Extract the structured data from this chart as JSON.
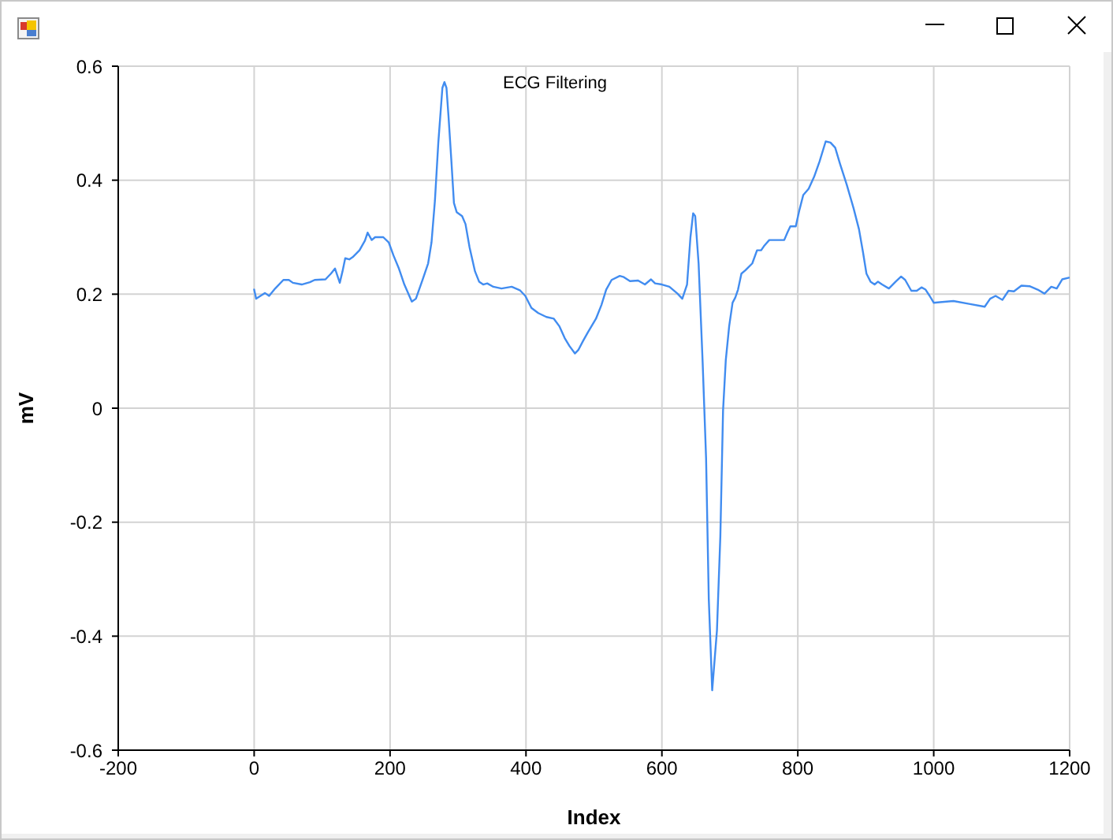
{
  "chart_data": {
    "type": "line",
    "title": "ECG Filtering",
    "xlabel": "Index",
    "ylabel": "mV",
    "x": [
      0,
      3,
      12,
      16,
      22,
      31,
      43,
      51,
      57,
      70,
      82,
      89,
      105,
      113,
      119,
      126,
      130,
      134,
      140,
      145,
      155,
      163,
      167,
      173,
      178,
      190,
      198,
      205,
      213,
      221,
      232,
      238,
      248,
      256,
      261,
      266,
      271,
      277,
      280,
      283,
      286,
      290,
      294,
      298,
      306,
      311,
      317,
      325,
      331,
      337,
      343,
      352,
      364,
      379,
      391,
      399,
      408,
      418,
      430,
      441,
      449,
      457,
      464,
      472,
      477,
      484,
      491,
      503,
      511,
      518,
      526,
      538,
      544,
      553,
      565,
      575,
      584,
      590,
      600,
      611,
      623,
      630,
      637,
      642,
      646,
      649,
      654,
      660,
      665,
      669,
      674,
      681,
      686,
      690,
      694,
      699,
      704,
      708,
      712,
      717,
      723,
      733,
      740,
      746,
      750,
      758,
      770,
      780,
      785,
      789,
      797,
      802,
      808,
      816,
      824,
      832,
      841,
      848,
      855,
      862,
      872,
      882,
      890,
      896,
      901,
      907,
      913,
      918,
      924,
      934,
      944,
      952,
      958,
      967,
      975,
      982,
      988,
      994,
      1000,
      1009,
      1029,
      1052,
      1075,
      1083,
      1091,
      1101,
      1110,
      1118,
      1129,
      1141,
      1153,
      1163,
      1173,
      1181,
      1189,
      1199
    ],
    "series": [
      {
        "color": "#418cf0",
        "values": [
          0.208,
          0.192,
          0.199,
          0.202,
          0.197,
          0.21,
          0.225,
          0.225,
          0.22,
          0.217,
          0.221,
          0.225,
          0.226,
          0.236,
          0.245,
          0.22,
          0.24,
          0.263,
          0.261,
          0.265,
          0.277,
          0.294,
          0.308,
          0.295,
          0.3,
          0.3,
          0.291,
          0.268,
          0.245,
          0.217,
          0.187,
          0.192,
          0.226,
          0.254,
          0.291,
          0.364,
          0.466,
          0.562,
          0.572,
          0.562,
          0.512,
          0.438,
          0.36,
          0.344,
          0.337,
          0.323,
          0.282,
          0.24,
          0.222,
          0.217,
          0.219,
          0.213,
          0.21,
          0.213,
          0.207,
          0.197,
          0.176,
          0.167,
          0.16,
          0.157,
          0.144,
          0.123,
          0.109,
          0.096,
          0.102,
          0.118,
          0.133,
          0.157,
          0.181,
          0.208,
          0.225,
          0.232,
          0.23,
          0.223,
          0.224,
          0.217,
          0.226,
          0.219,
          0.217,
          0.213,
          0.201,
          0.192,
          0.217,
          0.3,
          0.342,
          0.337,
          0.254,
          0.079,
          -0.087,
          -0.335,
          -0.495,
          -0.39,
          -0.225,
          -0.004,
          0.084,
          0.144,
          0.185,
          0.194,
          0.208,
          0.236,
          0.242,
          0.254,
          0.277,
          0.277,
          0.284,
          0.295,
          0.295,
          0.295,
          0.309,
          0.319,
          0.319,
          0.346,
          0.374,
          0.385,
          0.406,
          0.433,
          0.468,
          0.466,
          0.457,
          0.429,
          0.392,
          0.351,
          0.314,
          0.273,
          0.236,
          0.222,
          0.217,
          0.222,
          0.217,
          0.21,
          0.222,
          0.231,
          0.225,
          0.206,
          0.206,
          0.212,
          0.208,
          0.197,
          0.185,
          0.186,
          0.188,
          0.183,
          0.178,
          0.192,
          0.197,
          0.19,
          0.206,
          0.205,
          0.215,
          0.214,
          0.208,
          0.201,
          0.213,
          0.21,
          0.226,
          0.229
        ]
      }
    ],
    "xlim": [
      -200,
      1200
    ],
    "ylim": [
      -0.6,
      0.6
    ],
    "xticks": [
      -200,
      0,
      200,
      400,
      600,
      800,
      1000,
      1200
    ],
    "yticks": [
      -0.6,
      -0.4,
      -0.2,
      0,
      0.2,
      0.4,
      0.6
    ],
    "grid": true,
    "marker": "none",
    "line_style": "solid"
  }
}
